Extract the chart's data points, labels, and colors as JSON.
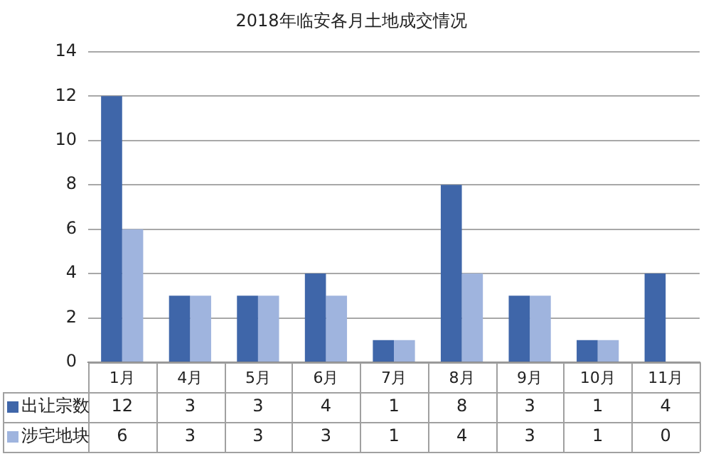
{
  "chart_data": {
    "type": "bar",
    "title": "2018年临安各月土地成交情况",
    "categories": [
      "1月",
      "4月",
      "5月",
      "6月",
      "7月",
      "8月",
      "9月",
      "10月",
      "11月"
    ],
    "series": [
      {
        "name": "出让宗数",
        "color": "#3f66a9",
        "values": [
          12,
          3,
          3,
          4,
          1,
          8,
          3,
          1,
          4
        ]
      },
      {
        "name": "涉宅地块",
        "color": "#9fb4de",
        "values": [
          6,
          3,
          3,
          3,
          1,
          4,
          3,
          1,
          0
        ]
      }
    ],
    "ylim": [
      0,
      14
    ],
    "yticks": [
      0,
      2,
      4,
      6,
      8,
      10,
      12,
      14
    ],
    "grid": "y",
    "legend": "bottom",
    "data_labels": true
  }
}
